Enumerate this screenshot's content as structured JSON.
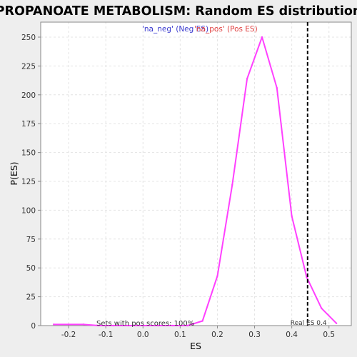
{
  "chart_data": {
    "type": "line",
    "title": "PROPANOATE METABOLISM: Random ES distribution",
    "xlabel": "ES",
    "ylabel": "P(ES)",
    "xlim": [
      -0.275,
      0.56
    ],
    "ylim": [
      0,
      263
    ],
    "x_ticks": [
      -0.2,
      -0.1,
      0.0,
      0.1,
      0.2,
      0.3,
      0.4,
      0.5
    ],
    "x_tick_labels": [
      "-0.2",
      "-0.1",
      "0.0",
      "0.1",
      "0.2",
      "0.3",
      "0.4",
      "0.5"
    ],
    "y_ticks": [
      0,
      25,
      50,
      75,
      100,
      125,
      150,
      175,
      200,
      225,
      250
    ],
    "y_tick_labels": [
      "0",
      "25",
      "50",
      "75",
      "100",
      "125",
      "150",
      "175",
      "200",
      "225",
      "250"
    ],
    "grid": true,
    "legend": [
      {
        "label": "'na_neg' (Neg ES)",
        "color": "#3a3acf"
      },
      {
        "label": "'na_pos' (Pos ES)",
        "color": "#e04040"
      }
    ],
    "series": [
      {
        "color": "#ff40ff",
        "x": [
          -0.24,
          -0.2,
          -0.16,
          -0.12,
          -0.08,
          -0.04,
          0.0,
          0.04,
          0.08,
          0.12,
          0.16,
          0.2,
          0.24,
          0.28,
          0.32,
          0.36,
          0.4,
          0.44,
          0.48,
          0.52
        ],
        "y": [
          1,
          1,
          1,
          0,
          0,
          0,
          0,
          0,
          0,
          0,
          4,
          43,
          122,
          214,
          250,
          206,
          95,
          42,
          15,
          2
        ]
      }
    ],
    "vline": {
      "x": 0.4425,
      "label": "Real ES 0.4",
      "style": "dashed",
      "color": "#000000"
    },
    "annotation": "Sets with pos scores: 100%"
  },
  "colors": {
    "background": "#eeeeee",
    "plot_background": "#ffffff",
    "grid": "#e4e4e4",
    "axis": "#888888"
  }
}
